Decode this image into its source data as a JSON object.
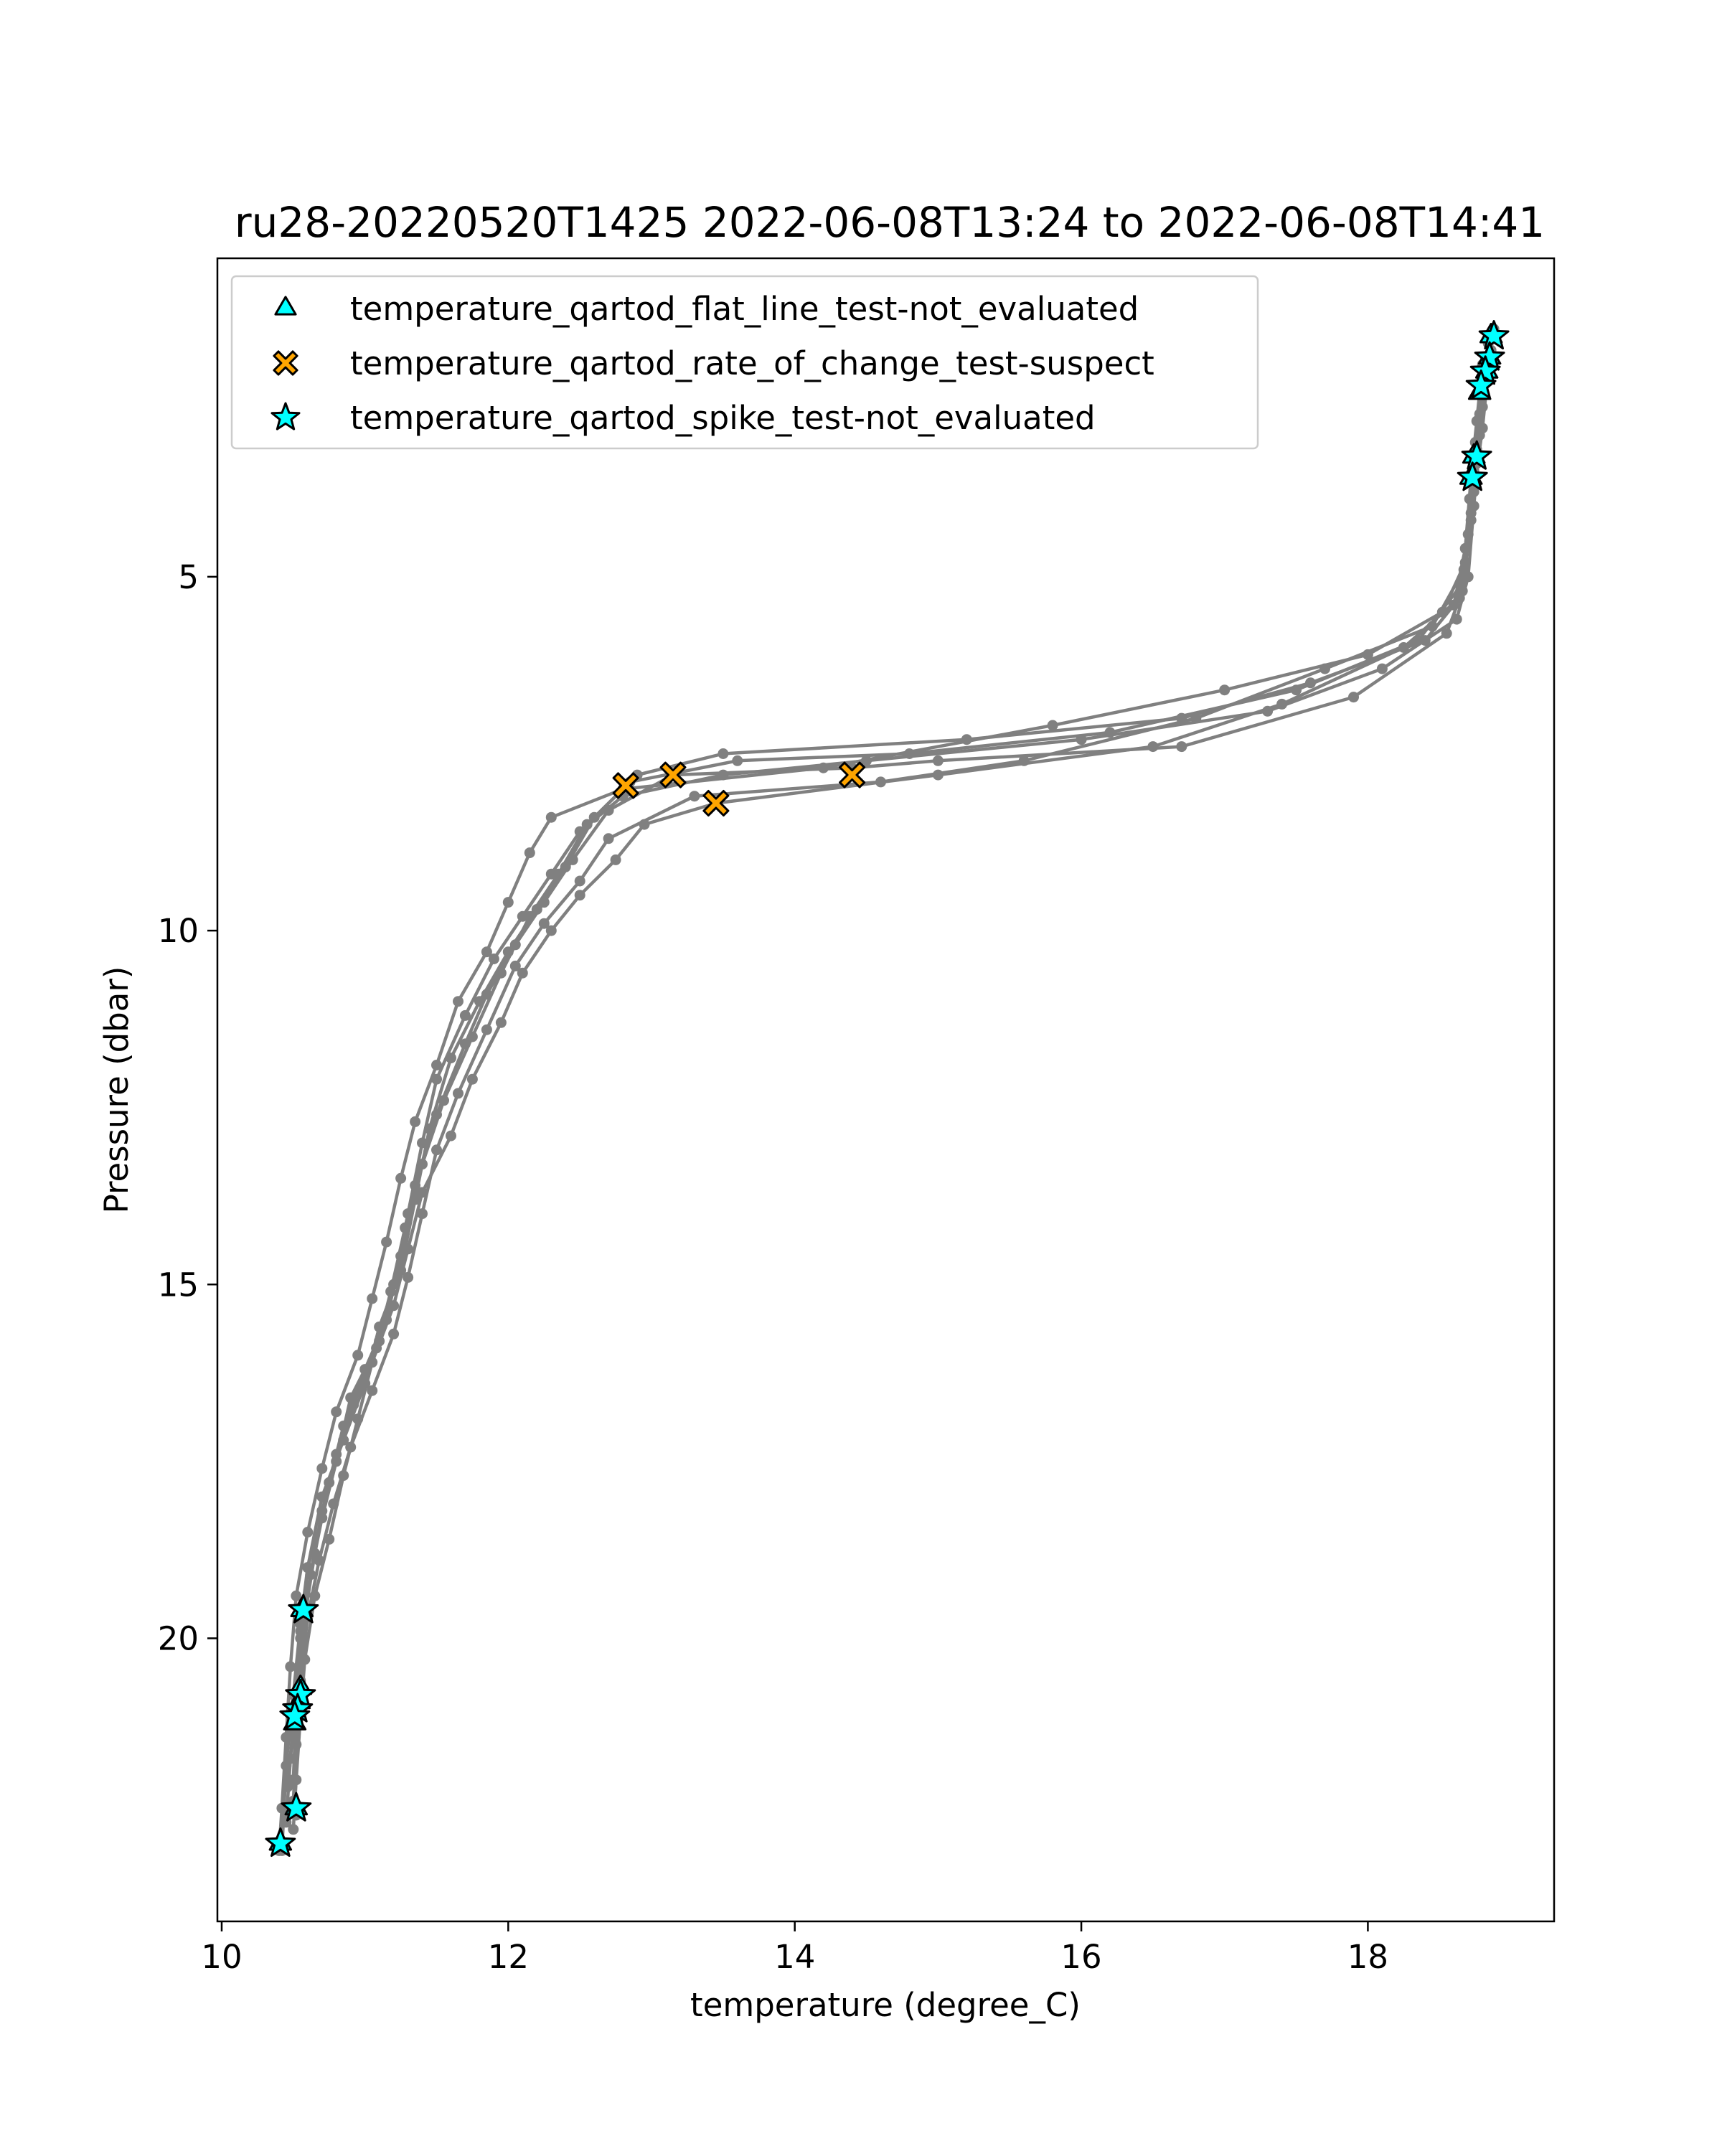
{
  "chart_data": {
    "type": "line",
    "title": "ru28-20220520T1425 2022-06-08T13:24 to 2022-06-08T14:41",
    "xlabel": "temperature (degree_C)",
    "ylabel": "Pressure (dbar)",
    "xlim": [
      9.97,
      19.3
    ],
    "ylim": [
      24.0,
      0.5
    ],
    "y_inverted": true,
    "grid": false,
    "legend_placement": "upper-left",
    "x_ticks": [
      10,
      12,
      14,
      16,
      18
    ],
    "x_tick_labels": [
      "10",
      "12",
      "14",
      "16",
      "18"
    ],
    "y_ticks": [
      5,
      10,
      15,
      20
    ],
    "y_tick_labels": [
      "5",
      "10",
      "15",
      "20"
    ],
    "profile_color": "#808080",
    "profiles": [
      {
        "points": [
          [
            18.85,
            1.6
          ],
          [
            18.82,
            2.2
          ],
          [
            18.78,
            3.0
          ],
          [
            18.74,
            4.0
          ],
          [
            18.7,
            5.0
          ],
          [
            18.62,
            5.6
          ],
          [
            18.1,
            6.3
          ],
          [
            17.3,
            6.9
          ],
          [
            16.0,
            7.3
          ],
          [
            14.5,
            7.6
          ],
          [
            13.5,
            7.8
          ],
          [
            12.8,
            8.1
          ],
          [
            12.5,
            8.6
          ],
          [
            12.3,
            9.2
          ],
          [
            12.1,
            9.8
          ],
          [
            11.9,
            10.4
          ],
          [
            11.7,
            11.2
          ],
          [
            11.5,
            12.1
          ],
          [
            11.4,
            13.0
          ],
          [
            11.3,
            14.0
          ],
          [
            11.2,
            15.0
          ],
          [
            11.1,
            15.8
          ],
          [
            10.9,
            16.6
          ],
          [
            10.8,
            17.5
          ],
          [
            10.7,
            18.3
          ],
          [
            10.6,
            19.0
          ],
          [
            10.55,
            19.8
          ],
          [
            10.5,
            20.8
          ],
          [
            10.45,
            21.8
          ],
          [
            10.42,
            23.0
          ]
        ]
      },
      {
        "points": [
          [
            18.8,
            2.0
          ],
          [
            18.76,
            2.8
          ],
          [
            18.72,
            3.6
          ],
          [
            18.68,
            4.6
          ],
          [
            18.6,
            5.4
          ],
          [
            18.4,
            5.9
          ],
          [
            17.6,
            6.5
          ],
          [
            16.7,
            7.0
          ],
          [
            15.2,
            7.3
          ],
          [
            13.5,
            7.5
          ],
          [
            12.9,
            7.8
          ],
          [
            12.6,
            8.4
          ],
          [
            12.4,
            9.1
          ],
          [
            12.2,
            9.7
          ],
          [
            12.0,
            10.3
          ],
          [
            11.8,
            11.0
          ],
          [
            11.6,
            11.8
          ],
          [
            11.45,
            12.8
          ],
          [
            11.35,
            13.8
          ],
          [
            11.25,
            14.8
          ],
          [
            11.1,
            15.6
          ],
          [
            11.0,
            16.4
          ],
          [
            10.85,
            17.2
          ],
          [
            10.7,
            18.0
          ],
          [
            10.6,
            19.0
          ],
          [
            10.55,
            20.0
          ],
          [
            10.52,
            21.0
          ],
          [
            10.5,
            22.0
          ],
          [
            10.52,
            22.5
          ]
        ]
      },
      {
        "points": [
          [
            18.86,
            1.8
          ],
          [
            18.8,
            2.6
          ],
          [
            18.76,
            3.4
          ],
          [
            18.72,
            4.2
          ],
          [
            18.66,
            5.2
          ],
          [
            18.55,
            5.8
          ],
          [
            17.9,
            6.7
          ],
          [
            16.7,
            7.4
          ],
          [
            15.0,
            7.6
          ],
          [
            14.4,
            7.7
          ],
          [
            13.15,
            7.8
          ],
          [
            12.7,
            8.3
          ],
          [
            12.45,
            9.0
          ],
          [
            12.25,
            9.6
          ],
          [
            12.05,
            10.2
          ],
          [
            11.85,
            10.9
          ],
          [
            11.7,
            11.6
          ],
          [
            11.5,
            12.6
          ],
          [
            11.35,
            13.6
          ],
          [
            11.25,
            14.6
          ],
          [
            11.15,
            15.5
          ],
          [
            11.0,
            16.2
          ],
          [
            10.85,
            17.0
          ],
          [
            10.75,
            17.8
          ],
          [
            10.65,
            18.8
          ],
          [
            10.58,
            19.7
          ],
          [
            10.54,
            20.8
          ],
          [
            10.5,
            21.2
          ],
          [
            10.46,
            22.1
          ]
        ]
      },
      {
        "points": [
          [
            18.82,
            1.9
          ],
          [
            18.78,
            2.7
          ],
          [
            18.74,
            3.5
          ],
          [
            18.7,
            4.4
          ],
          [
            18.64,
            5.3
          ],
          [
            18.25,
            6.0
          ],
          [
            17.4,
            6.8
          ],
          [
            16.5,
            7.4
          ],
          [
            15.0,
            7.8
          ],
          [
            13.45,
            8.2
          ],
          [
            12.95,
            8.5
          ],
          [
            12.75,
            9.0
          ],
          [
            12.5,
            9.5
          ],
          [
            12.3,
            10.0
          ],
          [
            12.1,
            10.6
          ],
          [
            11.95,
            11.3
          ],
          [
            11.75,
            12.1
          ],
          [
            11.6,
            12.9
          ],
          [
            11.4,
            13.7
          ],
          [
            11.3,
            14.5
          ],
          [
            11.2,
            15.3
          ],
          [
            11.05,
            16.1
          ],
          [
            10.95,
            16.9
          ],
          [
            10.85,
            17.7
          ],
          [
            10.75,
            18.6
          ],
          [
            10.65,
            19.4
          ],
          [
            10.58,
            20.3
          ],
          [
            10.55,
            21.1
          ],
          [
            10.52,
            22.0
          ],
          [
            10.5,
            22.7
          ]
        ]
      },
      {
        "points": [
          [
            18.88,
            1.5
          ],
          [
            18.84,
            2.1
          ],
          [
            18.8,
            2.9
          ],
          [
            18.74,
            3.8
          ],
          [
            18.68,
            4.8
          ],
          [
            18.52,
            5.5
          ],
          [
            18.0,
            6.1
          ],
          [
            17.0,
            6.6
          ],
          [
            15.8,
            7.1
          ],
          [
            14.2,
            7.7
          ],
          [
            12.8,
            8.0
          ],
          [
            12.3,
            8.4
          ],
          [
            12.15,
            8.9
          ],
          [
            12.0,
            9.6
          ],
          [
            11.85,
            10.3
          ],
          [
            11.65,
            11.0
          ],
          [
            11.5,
            11.9
          ],
          [
            11.35,
            12.7
          ],
          [
            11.25,
            13.5
          ],
          [
            11.15,
            14.4
          ],
          [
            11.05,
            15.2
          ],
          [
            10.95,
            16.0
          ],
          [
            10.8,
            16.8
          ],
          [
            10.7,
            17.6
          ],
          [
            10.6,
            18.5
          ],
          [
            10.52,
            19.4
          ],
          [
            10.48,
            20.4
          ],
          [
            10.45,
            21.4
          ],
          [
            10.42,
            22.4
          ],
          [
            10.4,
            23.0
          ]
        ]
      },
      {
        "points": [
          [
            18.79,
            2.3
          ],
          [
            18.75,
            3.1
          ],
          [
            18.71,
            3.9
          ],
          [
            18.67,
            4.9
          ],
          [
            18.45,
            5.7
          ],
          [
            17.7,
            6.3
          ],
          [
            16.8,
            7.0
          ],
          [
            15.6,
            7.6
          ],
          [
            14.6,
            7.9
          ],
          [
            13.3,
            8.1
          ],
          [
            12.7,
            8.7
          ],
          [
            12.5,
            9.3
          ],
          [
            12.25,
            9.9
          ],
          [
            12.05,
            10.5
          ],
          [
            11.85,
            11.4
          ],
          [
            11.65,
            12.3
          ],
          [
            11.5,
            13.1
          ],
          [
            11.4,
            14.0
          ],
          [
            11.3,
            14.9
          ],
          [
            11.2,
            15.7
          ],
          [
            11.05,
            16.5
          ],
          [
            10.9,
            17.3
          ],
          [
            10.78,
            18.1
          ],
          [
            10.68,
            18.9
          ],
          [
            10.6,
            19.7
          ],
          [
            10.55,
            20.6
          ],
          [
            10.52,
            21.5
          ],
          [
            10.5,
            22.3
          ]
        ]
      },
      {
        "points": [
          [
            18.84,
            1.7
          ],
          [
            18.8,
            2.4
          ],
          [
            18.76,
            3.2
          ],
          [
            18.72,
            4.1
          ],
          [
            18.66,
            5.1
          ],
          [
            18.35,
            5.9
          ],
          [
            17.5,
            6.6
          ],
          [
            16.2,
            7.2
          ],
          [
            14.8,
            7.5
          ],
          [
            13.6,
            7.6
          ],
          [
            12.85,
            7.9
          ],
          [
            12.55,
            8.5
          ],
          [
            12.35,
            9.2
          ],
          [
            12.15,
            9.8
          ],
          [
            11.95,
            10.6
          ],
          [
            11.75,
            11.5
          ],
          [
            11.55,
            12.4
          ],
          [
            11.4,
            13.3
          ],
          [
            11.28,
            14.2
          ],
          [
            11.18,
            15.1
          ],
          [
            11.08,
            15.9
          ],
          [
            10.92,
            16.7
          ],
          [
            10.8,
            17.4
          ],
          [
            10.7,
            18.2
          ],
          [
            10.62,
            19.1
          ],
          [
            10.55,
            19.9
          ],
          [
            10.52,
            20.9
          ],
          [
            10.48,
            21.7
          ],
          [
            10.45,
            22.6
          ]
        ]
      }
    ],
    "series": [
      {
        "name": "temperature_qartod_flat_line_test-not_evaluated",
        "marker": "triangle",
        "color": "#00ffff",
        "points": [
          [
            18.86,
            1.6
          ],
          [
            18.85,
            1.9
          ],
          [
            18.83,
            2.1
          ],
          [
            18.78,
            2.4
          ],
          [
            18.74,
            3.3
          ],
          [
            18.72,
            3.6
          ],
          [
            10.56,
            19.6
          ],
          [
            10.55,
            20.7
          ],
          [
            10.54,
            20.9
          ],
          [
            10.51,
            21.2
          ],
          [
            10.52,
            22.4
          ],
          [
            10.41,
            22.9
          ]
        ]
      },
      {
        "name": "temperature_qartod_rate_of_change_test-suspect",
        "marker": "x",
        "color": "#ffa500",
        "points": [
          [
            12.82,
            7.95
          ],
          [
            13.15,
            7.8
          ],
          [
            14.4,
            7.8
          ],
          [
            13.45,
            8.2
          ]
        ]
      },
      {
        "name": "temperature_qartod_spike_test-not_evaluated",
        "marker": "star",
        "color": "#00ffff",
        "points": [
          [
            18.88,
            1.6
          ],
          [
            18.85,
            1.9
          ],
          [
            18.82,
            2.1
          ],
          [
            18.79,
            2.3
          ],
          [
            18.76,
            3.3
          ],
          [
            18.73,
            3.6
          ],
          [
            10.57,
            19.6
          ],
          [
            10.55,
            20.8
          ],
          [
            10.53,
            21.0
          ],
          [
            10.51,
            21.1
          ],
          [
            10.52,
            22.4
          ],
          [
            10.41,
            22.9
          ]
        ]
      }
    ]
  }
}
